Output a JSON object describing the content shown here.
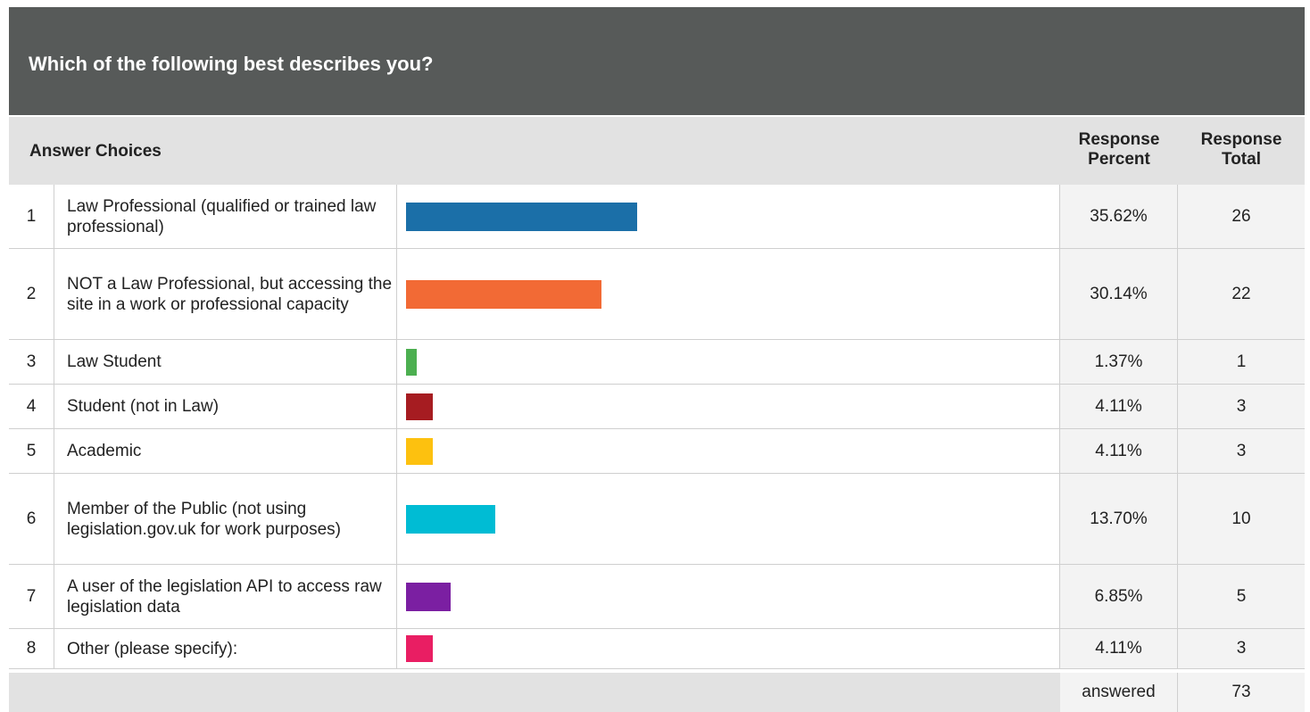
{
  "question": "Which of the following best describes you?",
  "headers": {
    "answer_choices": "Answer Choices",
    "percent_line1": "Response",
    "percent_line2": "Percent",
    "total_line1": "Response",
    "total_line2": "Total"
  },
  "footer": {
    "label": "answered",
    "value": "73"
  },
  "chart_data": {
    "type": "table",
    "title": "Which of the following best describes you?",
    "columns": [
      "Answer Choices",
      "Response Percent",
      "Response Total"
    ],
    "rows": [
      {
        "num": "1",
        "label": "Law Professional (qualified or trained law professional)",
        "percent_text": "35.62%",
        "percent": 35.62,
        "total": "26",
        "color": "#1b6fa8"
      },
      {
        "num": "2",
        "label": "NOT a Law Professional, but accessing the site in a work or professional capacity",
        "percent_text": "30.14%",
        "percent": 30.14,
        "total": "22",
        "color": "#f26a35"
      },
      {
        "num": "3",
        "label": "Law Student",
        "percent_text": "1.37%",
        "percent": 1.37,
        "total": "1",
        "color": "#4caf50"
      },
      {
        "num": "4",
        "label": "Student (not in Law)",
        "percent_text": "4.11%",
        "percent": 4.11,
        "total": "3",
        "color": "#a61c21"
      },
      {
        "num": "5",
        "label": "Academic",
        "percent_text": "4.11%",
        "percent": 4.11,
        "total": "3",
        "color": "#fdc10f"
      },
      {
        "num": "6",
        "label": "Member of the Public (not using legislation.gov.uk for work purposes)",
        "percent_text": "13.70%",
        "percent": 13.7,
        "total": "10",
        "color": "#00bcd4"
      },
      {
        "num": "7",
        "label": "A user of the legislation API to access raw legislation data",
        "percent_text": "6.85%",
        "percent": 6.85,
        "total": "5",
        "color": "#7b1fa2"
      },
      {
        "num": "8",
        "label": "Other (please specify):",
        "percent_text": "4.11%",
        "percent": 4.11,
        "total": "3",
        "color": "#e91e63"
      }
    ],
    "answered": 73
  }
}
